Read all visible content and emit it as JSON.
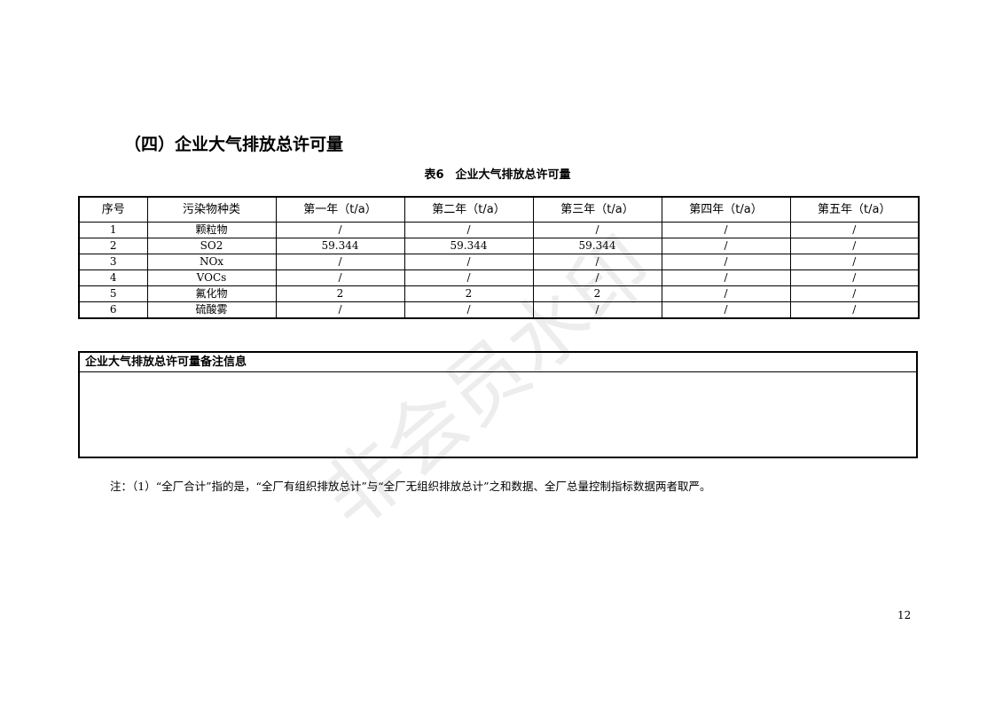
{
  "heading": "（四）企业大气排放总许可量",
  "caption": "表6　企业大气排放总许可量",
  "table": {
    "headers": [
      "序号",
      "污染物种类",
      "第一年（t/a）",
      "第二年（t/a）",
      "第三年（t/a）",
      "第四年（t/a）",
      "第五年（t/a）"
    ],
    "rows": [
      [
        "1",
        "颗粒物",
        "/",
        "/",
        "/",
        "/",
        "/"
      ],
      [
        "2",
        "SO2",
        "59.344",
        "59.344",
        "59.344",
        "/",
        "/"
      ],
      [
        "3",
        "NOx",
        "/",
        "/",
        "/",
        "/",
        "/"
      ],
      [
        "4",
        "VOCs",
        "/",
        "/",
        "/",
        "/",
        "/"
      ],
      [
        "5",
        "氟化物",
        "2",
        "2",
        "2",
        "/",
        "/"
      ],
      [
        "6",
        "硫酸雾",
        "/",
        "/",
        "/",
        "/",
        "/"
      ]
    ]
  },
  "remarks": {
    "title": "企业大气排放总许可量备注信息",
    "content": ""
  },
  "note": "注：（1）“全厂合计”指的是，“全厂有组织排放总计”与“全厂无组织排放总计”之和数据、全厂总量控制指标数据两者取严。",
  "page_number": "12",
  "watermark": "非会员水印"
}
